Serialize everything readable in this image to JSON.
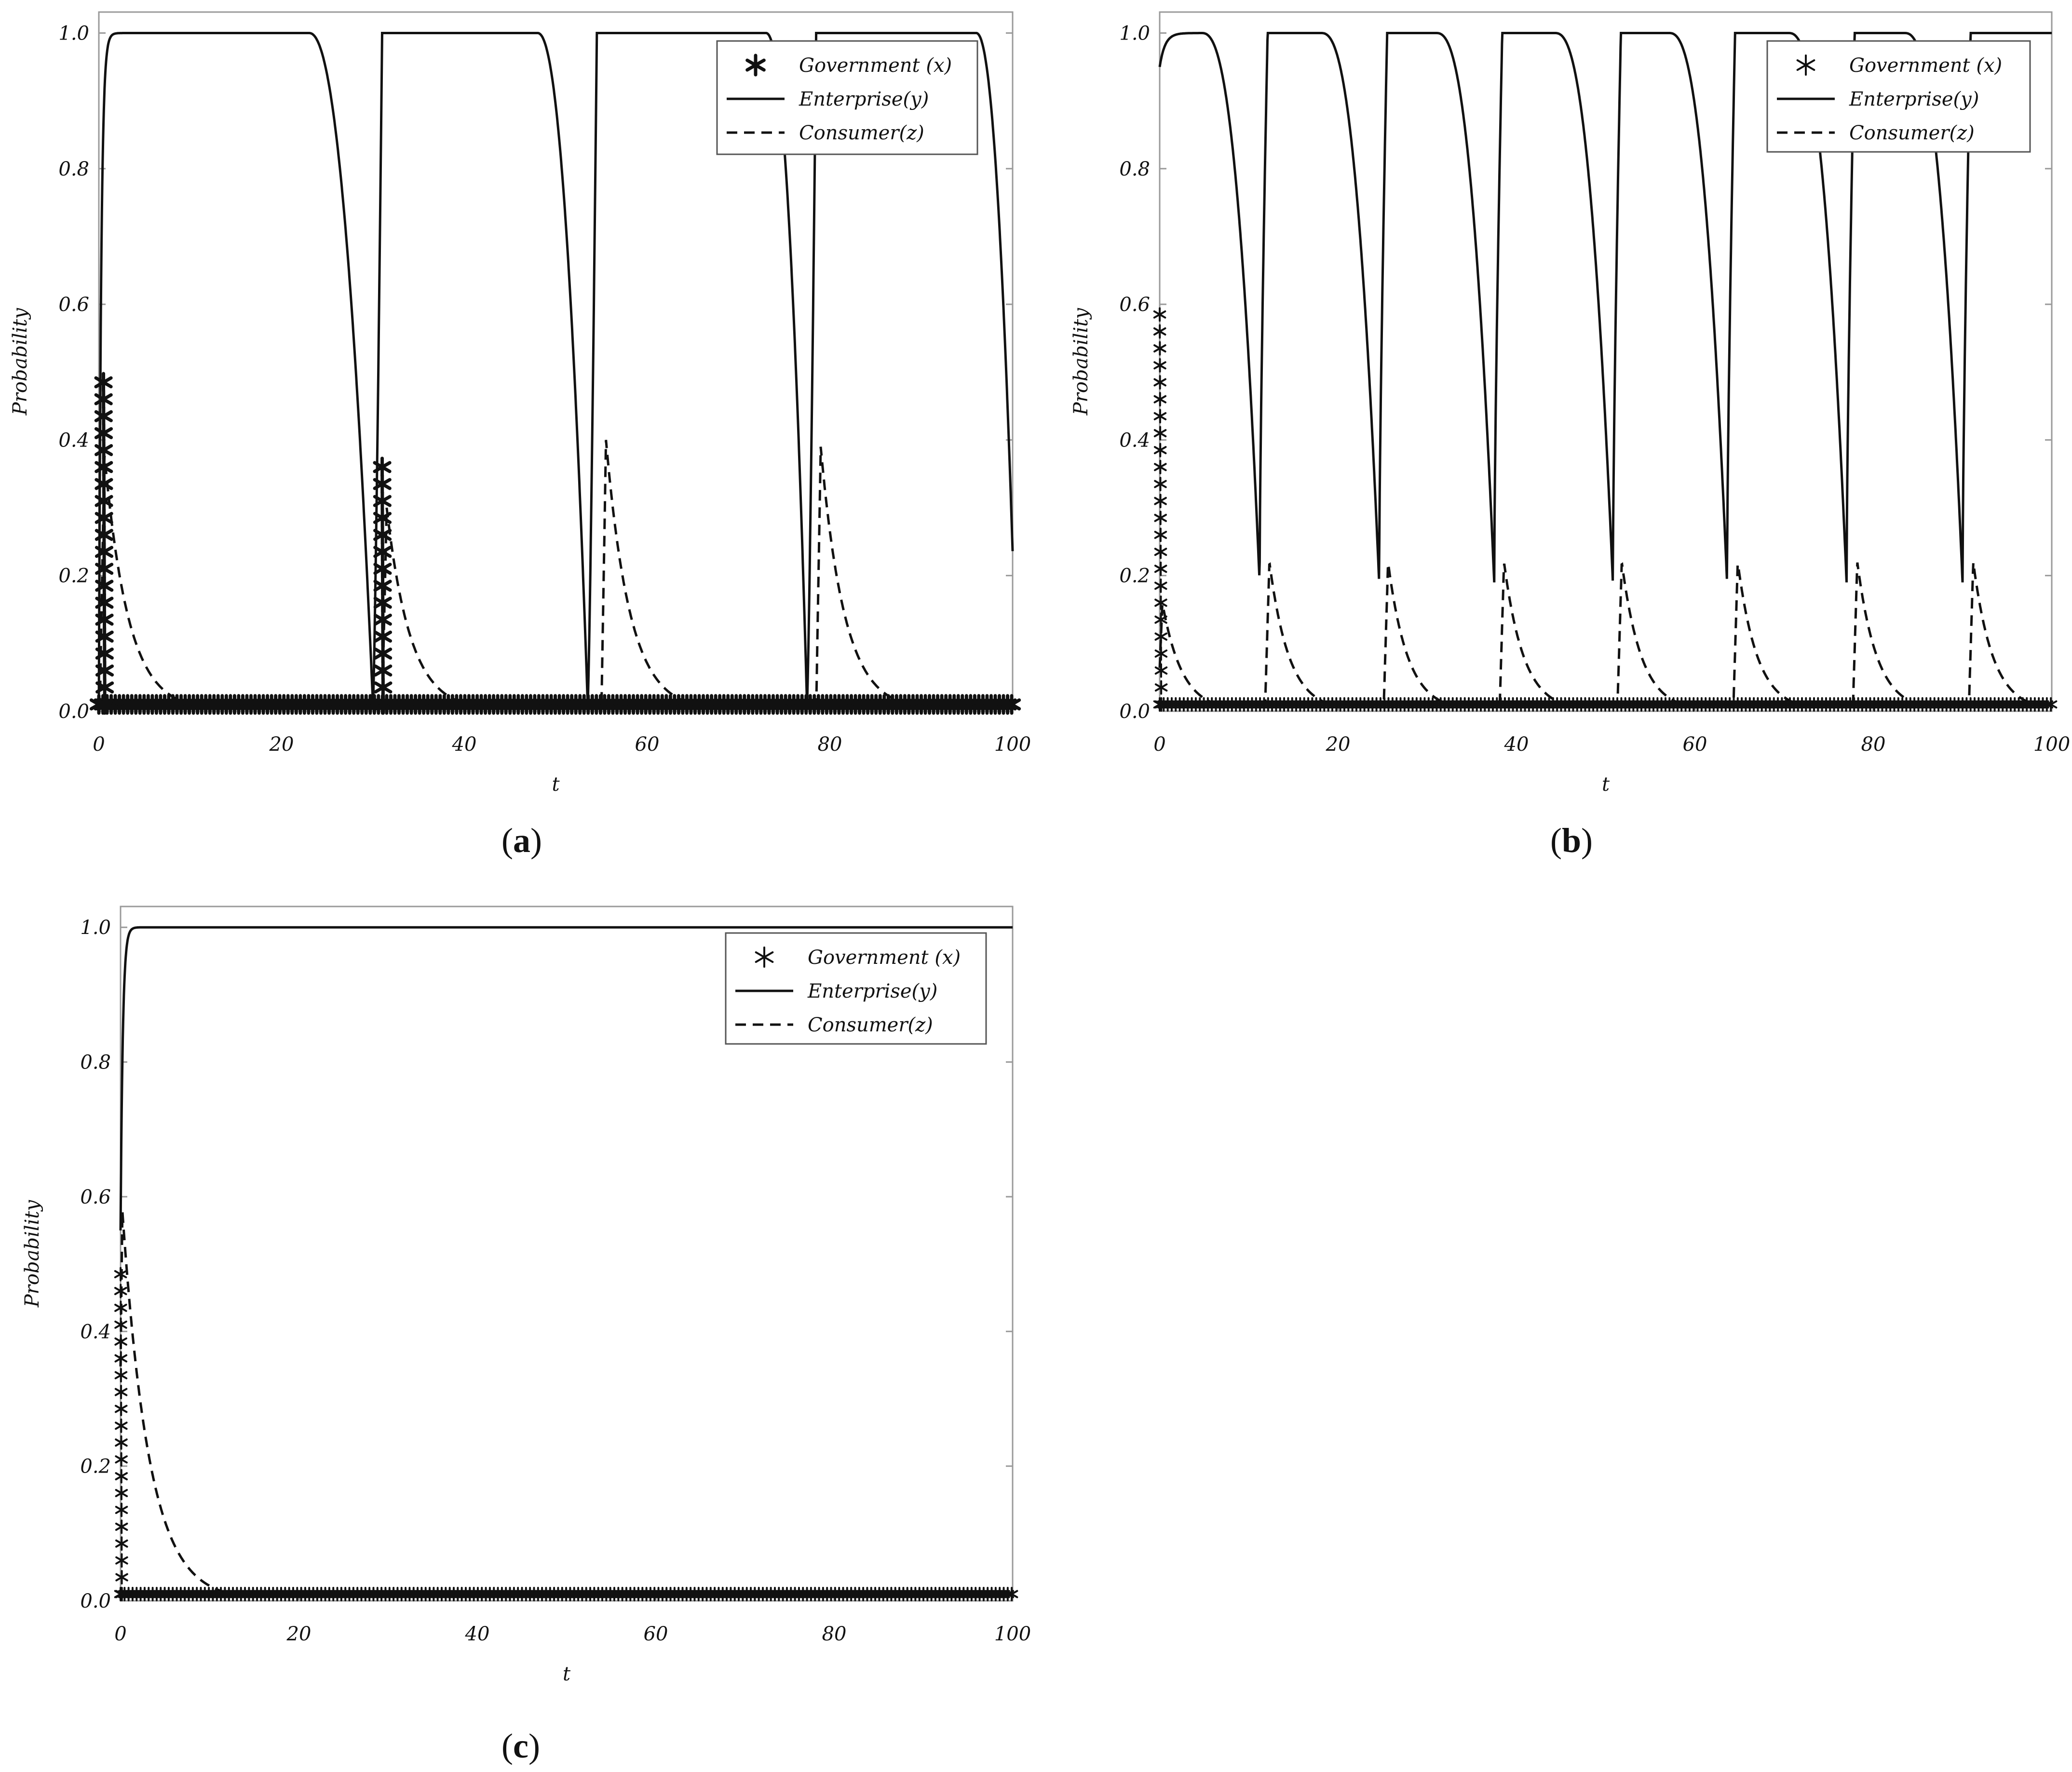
{
  "chart_data": [
    {
      "panel": "a",
      "type": "line",
      "caption_open": "(",
      "caption_letter": "a",
      "caption_close": ")",
      "xlabel": "t",
      "ylabel": "Probability",
      "xlim": [
        0,
        100
      ],
      "ylim": [
        0,
        1.0
      ],
      "xticks": [
        "0",
        "20",
        "40",
        "60",
        "80",
        "100"
      ],
      "yticks": [
        "0.0",
        "0.2",
        "0.4",
        "0.6",
        "0.8",
        "1.0"
      ],
      "legend_placement": "top-right",
      "star_style": "bold",
      "series": [
        {
          "name": "Government (x)",
          "style": "asterisk",
          "spikes": [
            [
              0.5,
              0.5
            ],
            [
              31,
              0.38
            ]
          ],
          "baseline": 0.01
        },
        {
          "name": "Enterprise(y)",
          "style": "solid",
          "start": 0.0,
          "drops": [
            {
              "fall_start": 23,
              "fall_end": 30,
              "rise": 31
            },
            {
              "fall_start": 48,
              "fall_end": 53.5,
              "rise": 54.5
            },
            {
              "fall_start": 73,
              "fall_end": 77.5,
              "rise": 78.5
            },
            {
              "fall_start": 96,
              "fall_end": 100.5,
              "rise": 105
            }
          ],
          "min": 0.01
        },
        {
          "name": "Consumer(z)",
          "style": "dashed",
          "peaks": [
            [
              0.6,
              0.38
            ],
            [
              31.5,
              0.3
            ],
            [
              55.5,
              0.4
            ],
            [
              79,
              0.39
            ]
          ],
          "decay": 2.6,
          "floor": 0.005
        }
      ]
    },
    {
      "panel": "b",
      "type": "line",
      "caption_open": "(",
      "caption_letter": "b",
      "caption_close": ")",
      "xlabel": "t",
      "ylabel": "Probability",
      "xlim": [
        0,
        100
      ],
      "ylim": [
        0,
        1.0
      ],
      "xticks": [
        "0",
        "20",
        "40",
        "60",
        "80",
        "100"
      ],
      "yticks": [
        "0.0",
        "0.2",
        "0.4",
        "0.6",
        "0.8",
        "1.0"
      ],
      "legend_placement": "top-right",
      "star_style": "light",
      "series": [
        {
          "name": "Government (x)",
          "style": "asterisk",
          "spikes": [
            [
              0,
              0.6
            ]
          ],
          "baseline": 0.01
        },
        {
          "name": "Enterprise(y)",
          "style": "solid",
          "start": 0.95,
          "dips": [
            11.2,
            24.6,
            37.5,
            50.8,
            63.6,
            77.0,
            90.0
          ],
          "dip_min": 0.19,
          "fall_width": 6.5,
          "rise_width": 0.9
        },
        {
          "name": "Consumer(z)",
          "style": "dashed",
          "peaks": [
            [
              0.3,
              0.16
            ],
            [
              12.3,
              0.22
            ],
            [
              25.6,
              0.22
            ],
            [
              38.6,
              0.22
            ],
            [
              51.8,
              0.22
            ],
            [
              64.8,
              0.22
            ],
            [
              78.2,
              0.22
            ],
            [
              91.2,
              0.22
            ]
          ],
          "decay": 2.2,
          "floor": 0.01
        }
      ]
    },
    {
      "panel": "c",
      "type": "line",
      "caption_open": "(",
      "caption_letter": "c",
      "caption_close": ")",
      "xlabel": "t",
      "ylabel": "Probability",
      "xlim": [
        0,
        100
      ],
      "ylim": [
        0,
        1.0
      ],
      "xticks": [
        "0",
        "20",
        "40",
        "60",
        "80",
        "100"
      ],
      "yticks": [
        "0.0",
        "0.2",
        "0.4",
        "0.6",
        "0.8",
        "1.0"
      ],
      "legend_placement": "top-right",
      "star_style": "light",
      "series": [
        {
          "name": "Government (x)",
          "style": "asterisk",
          "spikes": [
            [
              0,
              0.5
            ]
          ],
          "baseline": 0.01
        },
        {
          "name": "Enterprise(y)",
          "style": "solid",
          "start": 0.55,
          "drops": [],
          "min": 0.01
        },
        {
          "name": "Consumer(z)",
          "style": "dashed",
          "peaks": [
            [
              0.2,
              0.58
            ]
          ],
          "decay": 3.0,
          "floor": 0.01
        }
      ]
    }
  ]
}
